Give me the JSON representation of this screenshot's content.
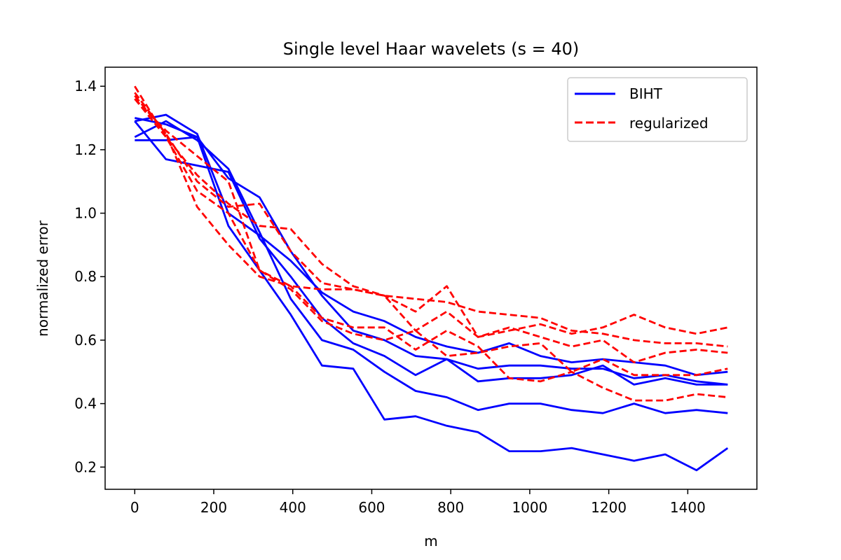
{
  "chart_data": {
    "type": "line",
    "title": "Single level Haar wavelets (s = 40)",
    "xlabel": "m",
    "ylabel": "normalized error",
    "xlim": [
      -75,
      1575
    ],
    "ylim": [
      0.13,
      1.46
    ],
    "xticks": [
      0,
      200,
      400,
      600,
      800,
      1000,
      1200,
      1400
    ],
    "yticks": [
      0.2,
      0.4,
      0.6,
      0.8,
      1.0,
      1.2,
      1.4
    ],
    "ytick_labels": [
      "0.2",
      "0.4",
      "0.6",
      "0.8",
      "1.0",
      "1.2",
      "1.4"
    ],
    "grid": false,
    "legend": {
      "location": "upper right",
      "entries": [
        {
          "label": "BIHT",
          "color": "#0000ff",
          "style": "solid"
        },
        {
          "label": "regularized",
          "color": "#ff0000",
          "style": "dashed"
        }
      ]
    },
    "x": [
      0,
      79,
      158,
      237,
      316,
      395,
      474,
      553,
      632,
      711,
      790,
      869,
      948,
      1027,
      1106,
      1185,
      1264,
      1343,
      1422,
      1501
    ],
    "series": [
      {
        "group": "BIHT",
        "color": "#0000ff",
        "style": "solid",
        "values": [
          1.29,
          1.31,
          1.25,
          1.0,
          0.93,
          0.85,
          0.75,
          0.69,
          0.66,
          0.61,
          0.58,
          0.56,
          0.59,
          0.55,
          0.53,
          0.54,
          0.53,
          0.52,
          0.49,
          0.5
        ]
      },
      {
        "group": "BIHT",
        "color": "#0000ff",
        "style": "solid",
        "values": [
          1.3,
          1.28,
          1.24,
          1.11,
          1.05,
          0.88,
          0.74,
          0.63,
          0.6,
          0.55,
          0.54,
          0.51,
          0.52,
          0.52,
          0.51,
          0.51,
          0.48,
          0.49,
          0.47,
          0.46
        ]
      },
      {
        "group": "BIHT",
        "color": "#0000ff",
        "style": "solid",
        "values": [
          1.23,
          1.23,
          1.24,
          0.96,
          0.82,
          0.68,
          0.52,
          0.51,
          0.35,
          0.36,
          0.33,
          0.31,
          0.25,
          0.25,
          0.26,
          0.24,
          0.22,
          0.24,
          0.19,
          0.26
        ]
      },
      {
        "group": "BIHT",
        "color": "#0000ff",
        "style": "solid",
        "values": [
          1.24,
          1.29,
          1.23,
          1.14,
          0.94,
          0.73,
          0.6,
          0.57,
          0.5,
          0.44,
          0.42,
          0.38,
          0.4,
          0.4,
          0.38,
          0.37,
          0.4,
          0.37,
          0.38,
          0.37
        ]
      },
      {
        "group": "BIHT",
        "color": "#0000ff",
        "style": "solid",
        "values": [
          1.29,
          1.17,
          1.15,
          1.13,
          0.92,
          0.8,
          0.67,
          0.59,
          0.55,
          0.49,
          0.54,
          0.47,
          0.48,
          0.48,
          0.49,
          0.52,
          0.46,
          0.48,
          0.46,
          0.46
        ]
      },
      {
        "group": "regularized",
        "color": "#ff0000",
        "style": "dashed",
        "values": [
          1.4,
          1.24,
          1.12,
          1.03,
          0.96,
          0.95,
          0.84,
          0.77,
          0.74,
          0.69,
          0.77,
          0.61,
          0.63,
          0.65,
          0.62,
          0.64,
          0.68,
          0.64,
          0.62,
          0.64
        ]
      },
      {
        "group": "regularized",
        "color": "#ff0000",
        "style": "dashed",
        "values": [
          1.38,
          1.25,
          1.1,
          1.02,
          1.03,
          0.88,
          0.78,
          0.76,
          0.74,
          0.73,
          0.72,
          0.69,
          0.68,
          0.67,
          0.63,
          0.62,
          0.6,
          0.59,
          0.59,
          0.58
        ]
      },
      {
        "group": "regularized",
        "color": "#ff0000",
        "style": "dashed",
        "values": [
          1.36,
          1.24,
          1.07,
          1.0,
          0.82,
          0.77,
          0.76,
          0.76,
          0.74,
          0.63,
          0.69,
          0.61,
          0.64,
          0.61,
          0.58,
          0.6,
          0.53,
          0.56,
          0.57,
          0.56
        ]
      },
      {
        "group": "regularized",
        "color": "#ff0000",
        "style": "dashed",
        "values": [
          1.37,
          1.25,
          1.02,
          0.9,
          0.8,
          0.77,
          0.67,
          0.64,
          0.64,
          0.57,
          0.63,
          0.58,
          0.48,
          0.47,
          0.5,
          0.45,
          0.41,
          0.41,
          0.43,
          0.42
        ]
      },
      {
        "group": "regularized",
        "color": "#ff0000",
        "style": "dashed",
        "values": [
          1.36,
          1.26,
          1.18,
          1.1,
          0.82,
          0.76,
          0.66,
          0.62,
          0.6,
          0.63,
          0.55,
          0.56,
          0.58,
          0.59,
          0.5,
          0.54,
          0.49,
          0.49,
          0.49,
          0.51
        ]
      }
    ]
  }
}
